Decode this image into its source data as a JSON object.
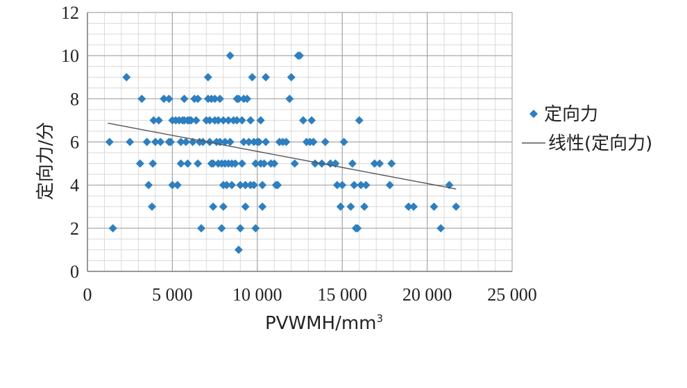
{
  "chart_data": {
    "type": "scatter",
    "title": "",
    "xlabel": "PVWMH/mm",
    "xlabel_superscript": "3",
    "ylabel": "定向力/分",
    "xlim": [
      0,
      25000
    ],
    "ylim": [
      0,
      12
    ],
    "x_ticks": [
      0,
      5000,
      10000,
      15000,
      20000,
      25000
    ],
    "x_tick_labels": [
      "0",
      "5 000",
      "10 000",
      "15 000",
      "20 000",
      "25 000"
    ],
    "y_ticks": [
      0,
      2,
      4,
      6,
      8,
      10,
      12
    ],
    "y_tick_labels": [
      "0",
      "2",
      "4",
      "6",
      "8",
      "10",
      "12"
    ],
    "grid": true,
    "legend_position": "right",
    "marker_color": "#2e7fbf",
    "trend_color": "#555555",
    "series": [
      {
        "name": "定向力",
        "points": [
          [
            1300,
            6
          ],
          [
            1500,
            2
          ],
          [
            2300,
            9
          ],
          [
            2500,
            6
          ],
          [
            3100,
            5
          ],
          [
            3200,
            8
          ],
          [
            3500,
            6
          ],
          [
            3600,
            4
          ],
          [
            3800,
            3
          ],
          [
            3850,
            5
          ],
          [
            3900,
            7
          ],
          [
            4000,
            6
          ],
          [
            4200,
            7
          ],
          [
            4300,
            6
          ],
          [
            4500,
            8
          ],
          [
            4800,
            8
          ],
          [
            4800,
            6
          ],
          [
            4900,
            6
          ],
          [
            5000,
            7
          ],
          [
            5000,
            4
          ],
          [
            5200,
            7
          ],
          [
            5300,
            4
          ],
          [
            5400,
            7
          ],
          [
            5500,
            6
          ],
          [
            5500,
            5
          ],
          [
            5600,
            7
          ],
          [
            5700,
            8
          ],
          [
            5700,
            7
          ],
          [
            5800,
            6
          ],
          [
            5900,
            7
          ],
          [
            5900,
            5
          ],
          [
            6000,
            7
          ],
          [
            6100,
            7
          ],
          [
            6200,
            6
          ],
          [
            6300,
            8
          ],
          [
            6400,
            7
          ],
          [
            6500,
            8
          ],
          [
            6500,
            5
          ],
          [
            6600,
            6
          ],
          [
            6700,
            2
          ],
          [
            6800,
            6
          ],
          [
            7000,
            7
          ],
          [
            7100,
            9
          ],
          [
            7100,
            8
          ],
          [
            7200,
            7
          ],
          [
            7200,
            6
          ],
          [
            7300,
            8
          ],
          [
            7300,
            5
          ],
          [
            7400,
            3
          ],
          [
            7400,
            5
          ],
          [
            7500,
            7
          ],
          [
            7500,
            8
          ],
          [
            7600,
            6
          ],
          [
            7700,
            7
          ],
          [
            7700,
            5
          ],
          [
            7800,
            8
          ],
          [
            7800,
            6
          ],
          [
            7900,
            5
          ],
          [
            7900,
            2
          ],
          [
            8000,
            7
          ],
          [
            8000,
            4
          ],
          [
            8000,
            3
          ],
          [
            8100,
            5
          ],
          [
            8100,
            6
          ],
          [
            8200,
            4
          ],
          [
            8300,
            7
          ],
          [
            8300,
            5
          ],
          [
            8400,
            10
          ],
          [
            8400,
            6
          ],
          [
            8500,
            4
          ],
          [
            8500,
            5
          ],
          [
            8600,
            7
          ],
          [
            8700,
            5
          ],
          [
            8800,
            8
          ],
          [
            8800,
            7
          ],
          [
            8900,
            1
          ],
          [
            8900,
            8
          ],
          [
            9000,
            4
          ],
          [
            9000,
            2
          ],
          [
            9100,
            5
          ],
          [
            9100,
            7
          ],
          [
            9200,
            8
          ],
          [
            9200,
            6
          ],
          [
            9300,
            4
          ],
          [
            9300,
            3
          ],
          [
            9400,
            8
          ],
          [
            9500,
            6
          ],
          [
            9600,
            7
          ],
          [
            9600,
            4
          ],
          [
            9700,
            9
          ],
          [
            9800,
            6
          ],
          [
            9800,
            4
          ],
          [
            9900,
            5
          ],
          [
            9900,
            2
          ],
          [
            10000,
            6
          ],
          [
            10100,
            6
          ],
          [
            10200,
            5
          ],
          [
            10200,
            7
          ],
          [
            10300,
            4
          ],
          [
            10300,
            3
          ],
          [
            10400,
            5
          ],
          [
            10500,
            9
          ],
          [
            10500,
            6
          ],
          [
            10800,
            5
          ],
          [
            11000,
            5
          ],
          [
            11100,
            4
          ],
          [
            11200,
            4
          ],
          [
            11300,
            6
          ],
          [
            11500,
            6
          ],
          [
            11700,
            6
          ],
          [
            11900,
            8
          ],
          [
            12000,
            9
          ],
          [
            12200,
            5
          ],
          [
            12400,
            10
          ],
          [
            12500,
            10
          ],
          [
            12700,
            7
          ],
          [
            12900,
            6
          ],
          [
            13100,
            6
          ],
          [
            13200,
            7
          ],
          [
            13300,
            6
          ],
          [
            13400,
            5
          ],
          [
            13800,
            5
          ],
          [
            14000,
            6
          ],
          [
            14300,
            5
          ],
          [
            14600,
            5
          ],
          [
            14700,
            4
          ],
          [
            14900,
            3
          ],
          [
            15000,
            4
          ],
          [
            15100,
            6
          ],
          [
            15500,
            3
          ],
          [
            15600,
            5
          ],
          [
            15700,
            4
          ],
          [
            15800,
            2
          ],
          [
            15900,
            2
          ],
          [
            16000,
            7
          ],
          [
            16100,
            4
          ],
          [
            16300,
            3
          ],
          [
            16400,
            4
          ],
          [
            16900,
            5
          ],
          [
            17200,
            5
          ],
          [
            17800,
            4
          ],
          [
            17900,
            5
          ],
          [
            18900,
            3
          ],
          [
            19200,
            3
          ],
          [
            20400,
            3
          ],
          [
            20800,
            2
          ],
          [
            21300,
            4
          ],
          [
            21700,
            3
          ]
        ]
      }
    ],
    "trendline": {
      "name": "线性(定向力)",
      "x": [
        1200,
        21700
      ],
      "y": [
        6.87,
        3.82
      ]
    }
  }
}
